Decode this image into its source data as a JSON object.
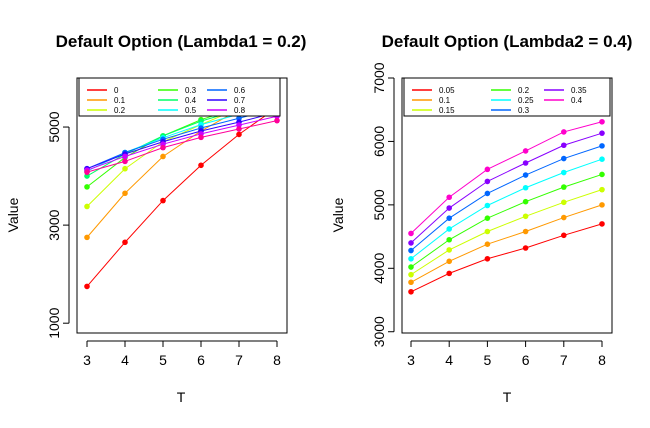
{
  "chart_data": [
    {
      "type": "line",
      "title": "Default Option (Lambda1 = 0.2)",
      "xlabel": "T",
      "ylabel": "Value",
      "x": [
        3,
        4,
        5,
        6,
        7,
        8
      ],
      "xlim": [
        3,
        8
      ],
      "ylim": [
        800,
        6000
      ],
      "xticks": [
        3,
        4,
        5,
        6,
        7,
        8
      ],
      "yticks": [
        1000,
        3000,
        5000
      ],
      "legend_position": "top-left",
      "legend_columns": 3,
      "series": [
        {
          "name": "0",
          "color": "#FF0000",
          "values": [
            1750,
            2650,
            3500,
            4220,
            4850,
            5400
          ]
        },
        {
          "name": "0.1",
          "color": "#FF9900",
          "values": [
            2750,
            3650,
            4400,
            4920,
            5350,
            5700
          ]
        },
        {
          "name": "0.2",
          "color": "#CCFF00",
          "values": [
            3380,
            4150,
            4700,
            5050,
            5380,
            5680
          ]
        },
        {
          "name": "0.3",
          "color": "#33FF00",
          "values": [
            3780,
            4380,
            4820,
            5150,
            5400,
            5620
          ]
        },
        {
          "name": "0.4",
          "color": "#00FF66",
          "values": [
            4000,
            4450,
            4820,
            5120,
            5350,
            5550
          ]
        },
        {
          "name": "0.5",
          "color": "#00FFFF",
          "values": [
            4100,
            4480,
            4780,
            5050,
            5260,
            5460
          ]
        },
        {
          "name": "0.6",
          "color": "#0066FF",
          "values": [
            4150,
            4480,
            4750,
            4980,
            5180,
            5380
          ]
        },
        {
          "name": "0.7",
          "color": "#3300FF",
          "values": [
            4150,
            4450,
            4700,
            4920,
            5100,
            5300
          ]
        },
        {
          "name": "0.8",
          "color": "#CC00FF",
          "values": [
            4120,
            4400,
            4650,
            4860,
            5040,
            5220
          ]
        },
        {
          "name": "",
          "color": "#FF0099",
          "values": [
            4080,
            4300,
            4580,
            4790,
            4960,
            5130
          ]
        }
      ]
    },
    {
      "type": "line",
      "title": "Default Option (Lambda2 = 0.4)",
      "xlabel": "T",
      "ylabel": "Value",
      "x": [
        3,
        4,
        5,
        6,
        7,
        8
      ],
      "xlim": [
        3,
        8
      ],
      "ylim": [
        2980,
        7000
      ],
      "xticks": [
        3,
        4,
        5,
        6,
        7,
        8
      ],
      "yticks": [
        3000,
        4000,
        5000,
        6000,
        7000
      ],
      "legend_position": "top-left",
      "legend_columns": 3,
      "series": [
        {
          "name": "0.05",
          "color": "#FF0000",
          "values": [
            3630,
            3920,
            4150,
            4320,
            4520,
            4700
          ]
        },
        {
          "name": "0.1",
          "color": "#FF9900",
          "values": [
            3780,
            4110,
            4380,
            4580,
            4800,
            5000
          ]
        },
        {
          "name": "0.15",
          "color": "#CCFF00",
          "values": [
            3900,
            4290,
            4580,
            4820,
            5040,
            5240
          ]
        },
        {
          "name": "0.2",
          "color": "#33FF00",
          "values": [
            4020,
            4450,
            4790,
            5050,
            5280,
            5480
          ]
        },
        {
          "name": "0.25",
          "color": "#00FFFF",
          "values": [
            4150,
            4620,
            4990,
            5270,
            5510,
            5720
          ]
        },
        {
          "name": "0.3",
          "color": "#0066FF",
          "values": [
            4280,
            4790,
            5180,
            5470,
            5730,
            5930
          ]
        },
        {
          "name": "0.35",
          "color": "#8800FF",
          "values": [
            4400,
            4950,
            5370,
            5660,
            5940,
            6130
          ]
        },
        {
          "name": "0.4",
          "color": "#FF00CC",
          "values": [
            4550,
            5120,
            5560,
            5850,
            6150,
            6310
          ]
        }
      ]
    }
  ]
}
